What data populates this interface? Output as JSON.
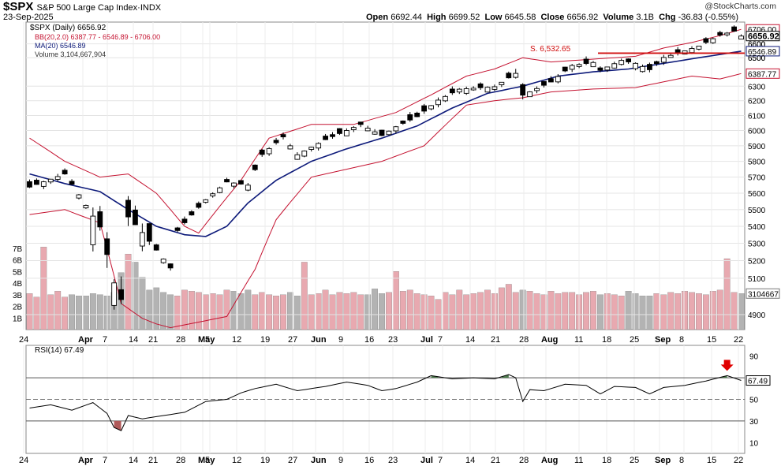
{
  "header": {
    "symbol": "$SPX",
    "name": "S&P 500 Large Cap Index",
    "exchange": "INDX",
    "date": "23-Sep-2025",
    "copyright": "@StockCharts.com",
    "open_label": "Open",
    "open": "6692.44",
    "high_label": "High",
    "high": "6699.52",
    "low_label": "Low",
    "low": "6645.58",
    "close_label": "Close",
    "close": "6656.92",
    "volume_label": "Volume",
    "volume": "3.1B",
    "chg_label": "Chg",
    "chg": "-36.83 (-0.55%)"
  },
  "legend": {
    "price": "$SPX (Daily) 6656.92",
    "bb": "BB(20,2.0) 6387.77 - 6546.89 - 6706.00",
    "ma": "MA(20) 6546.89",
    "volume": "Volume 3,104,667,904",
    "rsi": "RSI(14) 67.49"
  },
  "colors": {
    "bb": "#c41230",
    "ma": "#0d1a7a",
    "up_volume": "#e8a9b0",
    "down_volume": "#b3b3b3",
    "rsi_overbought_fill": "#4d7a4d",
    "rsi_oversold_fill": "#b05a5a",
    "arrow": "#e00000",
    "support": "#d01010"
  },
  "annotation": {
    "support_label": "S. 6,532.65"
  },
  "chart_data": [
    {
      "type": "candlestick",
      "title": "$SPX (Daily)",
      "y_scale": "log",
      "ylim": [
        4820,
        6760
      ],
      "y_ticks": [
        4900,
        5100,
        5200,
        5300,
        5400,
        5500,
        5600,
        5700,
        5800,
        5900,
        6000,
        6100,
        6200,
        6300,
        6500,
        6600
      ],
      "x_labels": [
        "24",
        "Apr",
        "7",
        "14",
        "21",
        "28",
        "May",
        "5",
        "12",
        "19",
        "27",
        "Jun",
        "9",
        "16",
        "23",
        "Jul",
        "7",
        "14",
        "21",
        "28",
        "Aug",
        "11",
        "18",
        "25",
        "Sep",
        "8",
        "15",
        "22"
      ],
      "price_labels": [
        "6706.00",
        "6656.92",
        "6600",
        "6546.89",
        "6500",
        "6387.77"
      ],
      "close_anchors": [
        [
          0,
          5638
        ],
        [
          5,
          5720
        ],
        [
          10,
          5396
        ],
        [
          12,
          5074
        ],
        [
          13,
          4982
        ],
        [
          14,
          5456
        ],
        [
          16,
          5363
        ],
        [
          20,
          5158
        ],
        [
          21,
          5375
        ],
        [
          25,
          5560
        ],
        [
          28,
          5670
        ],
        [
          31,
          5650
        ],
        [
          33,
          5844
        ],
        [
          36,
          5958
        ],
        [
          38,
          5842
        ],
        [
          42,
          5940
        ],
        [
          45,
          6000
        ],
        [
          47,
          6040
        ],
        [
          50,
          5967
        ],
        [
          52,
          6025
        ],
        [
          55,
          6092
        ],
        [
          58,
          6204
        ],
        [
          61,
          6279
        ],
        [
          66,
          6296
        ],
        [
          69,
          6389
        ],
        [
          70,
          6238
        ],
        [
          74,
          6329
        ],
        [
          77,
          6445
        ],
        [
          80,
          6466
        ],
        [
          81,
          6411
        ],
        [
          84,
          6481
        ],
        [
          86,
          6460
        ],
        [
          88,
          6415
        ],
        [
          90,
          6502
        ],
        [
          92,
          6532
        ],
        [
          95,
          6584
        ],
        [
          98,
          6664
        ],
        [
          100,
          6693
        ],
        [
          101,
          6656.92
        ]
      ],
      "bb_upper_anchors": [
        [
          0,
          5950
        ],
        [
          5,
          5800
        ],
        [
          10,
          5700
        ],
        [
          14,
          5720
        ],
        [
          18,
          5600
        ],
        [
          22,
          5400
        ],
        [
          24,
          5360
        ],
        [
          30,
          5680
        ],
        [
          34,
          5950
        ],
        [
          40,
          6040
        ],
        [
          46,
          6040
        ],
        [
          52,
          6120
        ],
        [
          57,
          6240
        ],
        [
          62,
          6370
        ],
        [
          66,
          6420
        ],
        [
          70,
          6500
        ],
        [
          74,
          6470
        ],
        [
          80,
          6490
        ],
        [
          86,
          6510
        ],
        [
          90,
          6570
        ],
        [
          94,
          6610
        ],
        [
          98,
          6660
        ],
        [
          101,
          6706
        ]
      ],
      "bb_lower_anchors": [
        [
          0,
          5470
        ],
        [
          5,
          5500
        ],
        [
          10,
          5420
        ],
        [
          13,
          4960
        ],
        [
          16,
          4880
        ],
        [
          18,
          4850
        ],
        [
          20,
          4830
        ],
        [
          24,
          4860
        ],
        [
          28,
          4890
        ],
        [
          32,
          5150
        ],
        [
          35,
          5440
        ],
        [
          40,
          5700
        ],
        [
          50,
          5800
        ],
        [
          56,
          5900
        ],
        [
          62,
          6170
        ],
        [
          66,
          6200
        ],
        [
          70,
          6220
        ],
        [
          74,
          6260
        ],
        [
          80,
          6280
        ],
        [
          86,
          6290
        ],
        [
          90,
          6330
        ],
        [
          94,
          6370
        ],
        [
          98,
          6350
        ],
        [
          101,
          6387.77
        ]
      ],
      "ma_anchors": [
        [
          0,
          5720
        ],
        [
          5,
          5660
        ],
        [
          10,
          5610
        ],
        [
          14,
          5500
        ],
        [
          18,
          5400
        ],
        [
          22,
          5350
        ],
        [
          25,
          5340
        ],
        [
          28,
          5400
        ],
        [
          31,
          5540
        ],
        [
          35,
          5680
        ],
        [
          40,
          5800
        ],
        [
          45,
          5880
        ],
        [
          50,
          5950
        ],
        [
          55,
          6030
        ],
        [
          60,
          6150
        ],
        [
          65,
          6250
        ],
        [
          70,
          6300
        ],
        [
          75,
          6370
        ],
        [
          80,
          6400
        ],
        [
          85,
          6420
        ],
        [
          90,
          6460
        ],
        [
          95,
          6500
        ],
        [
          101,
          6546.89
        ]
      ],
      "support_level": 6532.65
    },
    {
      "type": "bar",
      "title": "Volume",
      "y_ticks": [
        "1B",
        "2B",
        "3B",
        "4B",
        "5B",
        "6B",
        "7B"
      ],
      "ylim": [
        0,
        8
      ],
      "last_volume_label": "3104667",
      "values_billions": [
        3.1,
        2.8,
        7.1,
        3.0,
        3.3,
        2.8,
        3.0,
        2.9,
        2.9,
        3.1,
        3.0,
        2.9,
        3.2,
        4.9,
        6.5,
        5.8,
        4.5,
        3.4,
        3.6,
        3.2,
        3.0,
        2.9,
        3.4,
        3.3,
        3.2,
        3.0,
        3.1,
        3.0,
        3.4,
        3.3,
        3.1,
        3.4,
        3.0,
        3.2,
        3.0,
        2.9,
        3.0,
        3.2,
        2.9,
        5.8,
        3.0,
        3.1,
        3.4,
        3.0,
        3.2,
        3.1,
        3.2,
        3.0,
        3.0,
        3.5,
        3.1,
        3.2,
        5.0,
        3.3,
        3.4,
        3.1,
        3.0,
        2.9,
        2.6,
        3.2,
        3.0,
        3.4,
        3.0,
        3.1,
        3.2,
        3.4,
        3.1,
        3.6,
        3.9,
        3.2,
        3.4,
        3.3,
        3.1,
        3.0,
        3.3,
        3.1,
        3.2,
        3.2,
        3.0,
        3.2,
        3.3,
        3.0,
        3.1,
        3.0,
        2.9,
        3.3,
        3.1,
        2.9,
        2.9,
        3.1,
        3.0,
        3.2,
        3.1,
        3.3,
        3.2,
        3.1,
        3.0,
        3.3,
        3.4,
        6.1,
        3.2,
        3.1
      ],
      "up_flags_by_pattern": "red when close > prior close"
    },
    {
      "type": "line",
      "title": "RSI(14)",
      "ylim": [
        0,
        100
      ],
      "y_ticks": [
        10,
        30,
        50,
        70,
        90
      ],
      "reference_lines": [
        70,
        50,
        30
      ],
      "last_label": "67.49",
      "anchors": [
        [
          0,
          42
        ],
        [
          3,
          45
        ],
        [
          6,
          40
        ],
        [
          9,
          47
        ],
        [
          11,
          37
        ],
        [
          12,
          24
        ],
        [
          13,
          21
        ],
        [
          14,
          35
        ],
        [
          16,
          32
        ],
        [
          20,
          36
        ],
        [
          22,
          38
        ],
        [
          25,
          48
        ],
        [
          28,
          50
        ],
        [
          30,
          56
        ],
        [
          32,
          60
        ],
        [
          35,
          64
        ],
        [
          38,
          58
        ],
        [
          42,
          62
        ],
        [
          45,
          66
        ],
        [
          48,
          63
        ],
        [
          50,
          58
        ],
        [
          52,
          60
        ],
        [
          55,
          66
        ],
        [
          57,
          72
        ],
        [
          60,
          69
        ],
        [
          63,
          70
        ],
        [
          66,
          69
        ],
        [
          68,
          73
        ],
        [
          69,
          70
        ],
        [
          70,
          48
        ],
        [
          71,
          59
        ],
        [
          73,
          58
        ],
        [
          76,
          64
        ],
        [
          79,
          63
        ],
        [
          81,
          55
        ],
        [
          83,
          62
        ],
        [
          86,
          61
        ],
        [
          88,
          55
        ],
        [
          90,
          61
        ],
        [
          93,
          63
        ],
        [
          96,
          67
        ],
        [
          99,
          72
        ],
        [
          101,
          67.49
        ]
      ],
      "signal_arrow_at_index": 99
    }
  ]
}
